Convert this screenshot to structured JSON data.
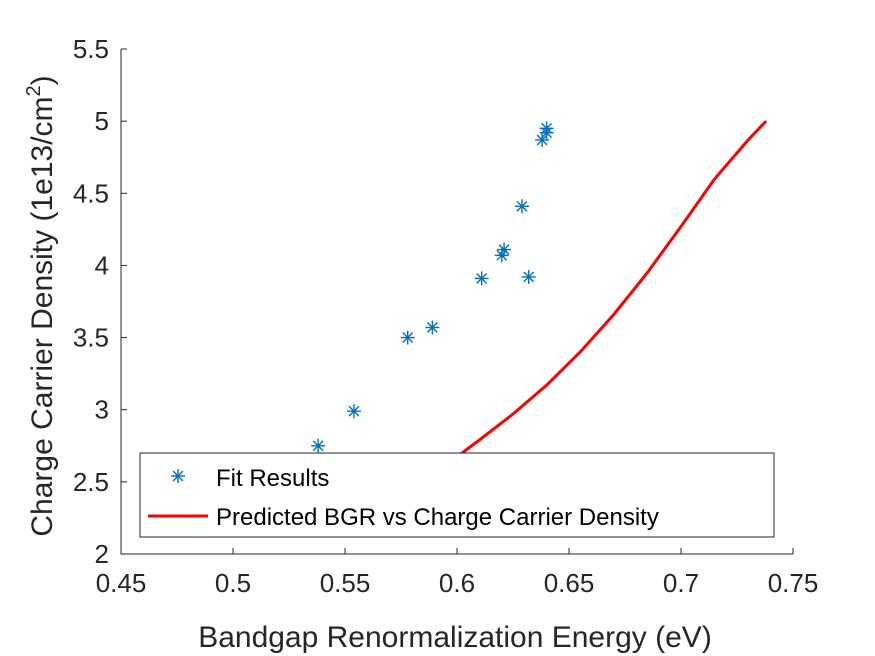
{
  "chart_data": {
    "type": "scatter",
    "title": "",
    "xlabel": "Bandgap Renormalization Energy (eV)",
    "ylabel_main": "Charge Carrier Density (1e13/cm",
    "ylabel_sup": "2",
    "ylabel_tail": ")",
    "xlim": [
      0.45,
      0.75
    ],
    "ylim": [
      2,
      5.5
    ],
    "xticks": [
      0.45,
      0.5,
      0.55,
      0.6,
      0.65,
      0.7,
      0.75
    ],
    "xtick_labels": [
      "0.45",
      "0.5",
      "0.55",
      "0.6",
      "0.65",
      "0.7",
      "0.75"
    ],
    "yticks": [
      2,
      2.5,
      3,
      3.5,
      4,
      4.5,
      5,
      5.5
    ],
    "ytick_labels": [
      "2",
      "2.5",
      "3",
      "3.5",
      "4",
      "4.5",
      "5",
      "5.5"
    ],
    "grid": false,
    "legend_position": "bottom-left",
    "series": [
      {
        "name": "Fit Results",
        "kind": "scatter",
        "marker": "asterisk",
        "color": "#0072BD",
        "points": [
          {
            "x": 0.538,
            "y": 2.75
          },
          {
            "x": 0.554,
            "y": 2.99
          },
          {
            "x": 0.578,
            "y": 3.5
          },
          {
            "x": 0.589,
            "y": 3.57
          },
          {
            "x": 0.611,
            "y": 3.91
          },
          {
            "x": 0.62,
            "y": 4.07
          },
          {
            "x": 0.621,
            "y": 4.11
          },
          {
            "x": 0.629,
            "y": 4.41
          },
          {
            "x": 0.632,
            "y": 3.92
          },
          {
            "x": 0.638,
            "y": 4.87
          },
          {
            "x": 0.64,
            "y": 4.92
          },
          {
            "x": 0.64,
            "y": 4.95
          }
        ]
      },
      {
        "name": "Predicted BGR vs Charge Carrier Density",
        "kind": "line",
        "color": "#FF0000",
        "points": [
          {
            "x": 0.598,
            "y": 2.65
          },
          {
            "x": 0.61,
            "y": 2.79
          },
          {
            "x": 0.625,
            "y": 2.97
          },
          {
            "x": 0.64,
            "y": 3.17
          },
          {
            "x": 0.655,
            "y": 3.4
          },
          {
            "x": 0.67,
            "y": 3.66
          },
          {
            "x": 0.685,
            "y": 3.95
          },
          {
            "x": 0.7,
            "y": 4.27
          },
          {
            "x": 0.715,
            "y": 4.6
          },
          {
            "x": 0.73,
            "y": 4.87
          },
          {
            "x": 0.738,
            "y": 5.0
          }
        ]
      }
    ]
  }
}
